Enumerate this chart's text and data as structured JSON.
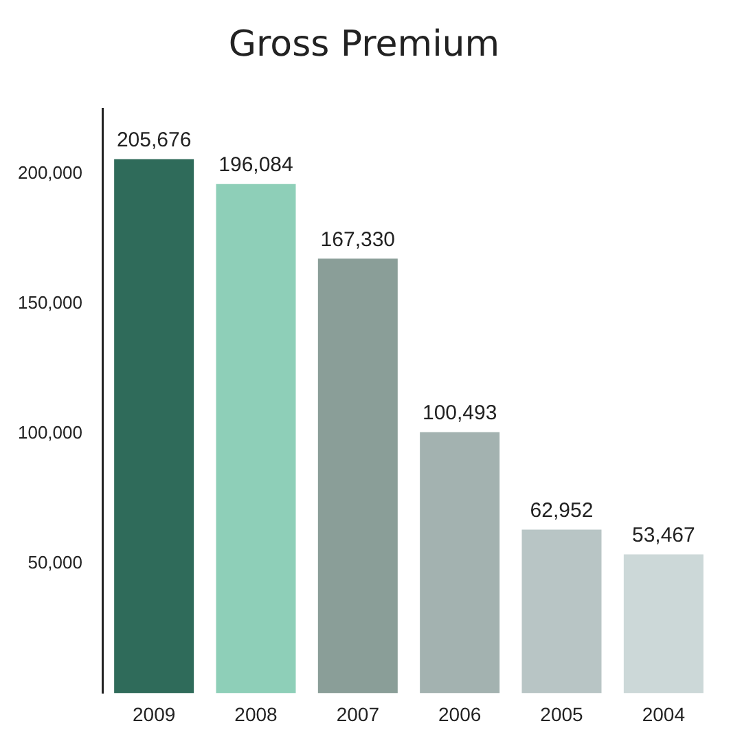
{
  "chart_data": {
    "type": "bar",
    "title": "Gross Premium",
    "categories": [
      "2009",
      "2008",
      "2007",
      "2006",
      "2005",
      "2004"
    ],
    "values": [
      205676,
      196084,
      167330,
      100493,
      62952,
      53467
    ],
    "value_labels": [
      "205,676",
      "196,084",
      "167,330",
      "100,493",
      "62,952",
      "53,467"
    ],
    "colors": [
      "#2f6b5a",
      "#8ecfb8",
      "#8a9e98",
      "#a3b2b0",
      "#b8c5c5",
      "#ccd8d8"
    ],
    "ylim": [
      0,
      225000
    ],
    "yticks": [
      {
        "value": 50000,
        "label": "50,000"
      },
      {
        "value": 100000,
        "label": "100,000"
      },
      {
        "value": 150000,
        "label": "150,000"
      },
      {
        "value": 200000,
        "label": "200,000"
      }
    ],
    "grid": false,
    "legend": false
  }
}
